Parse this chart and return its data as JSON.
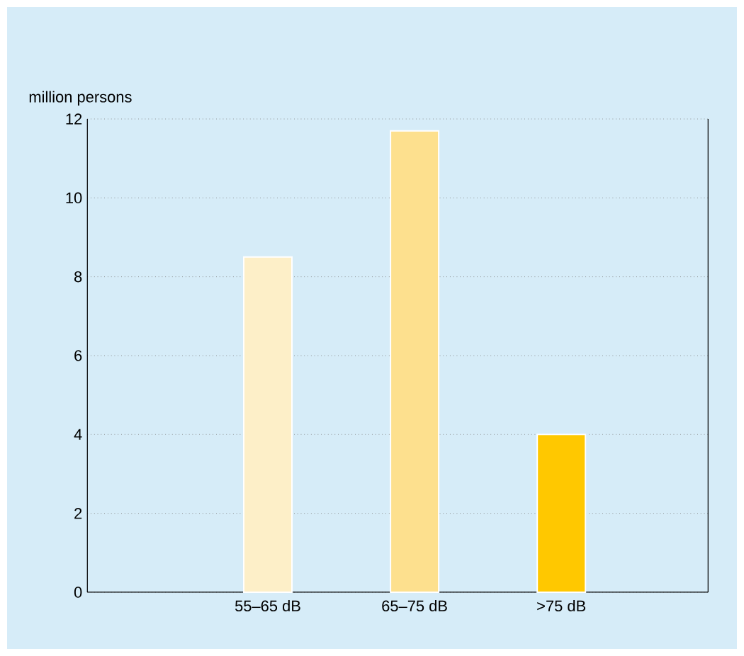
{
  "chart_data": {
    "type": "bar",
    "ylabel": "million persons",
    "categories": [
      "55–65 dB",
      "65–75 dB",
      ">75 dB"
    ],
    "values": [
      8.5,
      11.7,
      4.0
    ],
    "colors": [
      "#fdefc8",
      "#fde08e",
      "#ffc800"
    ],
    "ylim": [
      0,
      12
    ],
    "yticks": [
      0,
      2,
      4,
      6,
      8,
      10,
      12
    ],
    "grid": "y"
  }
}
